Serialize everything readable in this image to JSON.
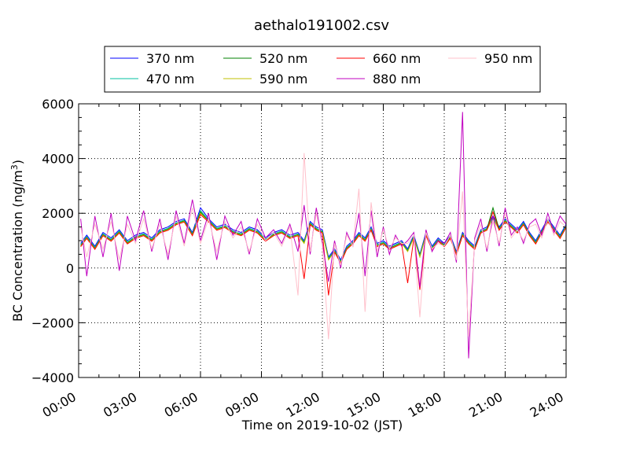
{
  "chart_data": {
    "type": "line",
    "title": "aethalo191002.csv",
    "xlabel": "Time on 2019-10-02 (JST)",
    "ylabel_main": "BC Concentration (ng/m",
    "ylabel_sup": "3",
    "ylabel_tail": ")",
    "xlim": [
      "00:00",
      "24:00"
    ],
    "ylim": [
      -4000,
      6000
    ],
    "x_ticks": [
      "00:00",
      "03:00",
      "06:00",
      "09:00",
      "12:00",
      "15:00",
      "18:00",
      "21:00",
      "24:00"
    ],
    "y_ticks": [
      "−4000",
      "−2000",
      "0",
      "2000",
      "4000",
      "6000"
    ],
    "grid": true,
    "legend_position": "top",
    "x_hours": [
      0.1,
      0.4,
      0.8,
      1.2,
      1.6,
      2.0,
      2.4,
      2.8,
      3.2,
      3.6,
      4.0,
      4.4,
      4.8,
      5.2,
      5.6,
      6.0,
      6.4,
      6.8,
      7.2,
      7.6,
      8.0,
      8.4,
      8.8,
      9.2,
      9.6,
      10.0,
      10.4,
      10.8,
      11.1,
      11.4,
      11.7,
      12.0,
      12.3,
      12.6,
      12.9,
      13.2,
      13.5,
      13.8,
      14.1,
      14.4,
      14.7,
      15.0,
      15.3,
      15.6,
      15.9,
      16.2,
      16.5,
      16.8,
      17.1,
      17.4,
      17.7,
      18.0,
      18.3,
      18.6,
      18.9,
      19.2,
      19.5,
      19.8,
      20.1,
      20.4,
      20.7,
      21.0,
      21.3,
      21.6,
      21.9,
      22.2,
      22.5,
      22.8,
      23.1,
      23.4,
      23.7,
      24.0
    ],
    "series": [
      {
        "name": "370 nm",
        "color": "#0000ff",
        "values": [
          900,
          1200,
          800,
          1300,
          1100,
          1400,
          1000,
          1200,
          1300,
          1100,
          1400,
          1500,
          1700,
          1800,
          1300,
          2200,
          1800,
          1500,
          1600,
          1400,
          1300,
          1500,
          1400,
          1100,
          1300,
          1400,
          1200,
          1300,
          1000,
          1700,
          1500,
          1400,
          400,
          700,
          300,
          800,
          1000,
          1300,
          1100,
          1500,
          900,
          1000,
          800,
          900,
          1000,
          700,
          1200,
          500,
          1300,
          800,
          1100,
          900,
          1200,
          600,
          1300,
          1000,
          800,
          1400,
          1500,
          1900,
          1500,
          1800,
          1600,
          1400,
          1700,
          1300,
          1000,
          1400,
          1800,
          1500,
          1200,
          1600
        ]
      },
      {
        "name": "470 nm",
        "color": "#00c0a0",
        "values": [
          850,
          1150,
          750,
          1250,
          1050,
          1350,
          950,
          1150,
          1250,
          1050,
          1350,
          1450,
          1650,
          1750,
          1250,
          2100,
          1750,
          1450,
          1550,
          1350,
          1250,
          1450,
          1350,
          1050,
          1250,
          1350,
          1150,
          1250,
          950,
          1650,
          1450,
          1350,
          350,
          650,
          250,
          750,
          950,
          1250,
          1050,
          1450,
          850,
          950,
          750,
          850,
          950,
          650,
          1150,
          450,
          1250,
          750,
          1050,
          850,
          1150,
          550,
          1250,
          950,
          750,
          1350,
          1450,
          1850,
          1450,
          1750,
          1550,
          1350,
          1650,
          1250,
          950,
          1350,
          1750,
          1450,
          1150,
          1550
        ]
      },
      {
        "name": "520 nm",
        "color": "#008000",
        "values": [
          820,
          1120,
          720,
          1220,
          1020,
          1320,
          920,
          1120,
          1220,
          1020,
          1320,
          1420,
          1620,
          1720,
          1220,
          2050,
          1720,
          1420,
          1520,
          1320,
          1220,
          1420,
          1320,
          1020,
          1220,
          1320,
          1120,
          1220,
          920,
          1620,
          1420,
          1320,
          320,
          620,
          220,
          720,
          920,
          1220,
          1020,
          1420,
          820,
          920,
          720,
          820,
          920,
          620,
          1120,
          420,
          1220,
          720,
          1020,
          820,
          1120,
          520,
          1220,
          920,
          720,
          1320,
          1420,
          2200,
          1420,
          1720,
          1520,
          1320,
          1620,
          1220,
          920,
          1320,
          1720,
          1420,
          1120,
          1520
        ]
      },
      {
        "name": "590 nm",
        "color": "#c0c000",
        "values": [
          800,
          1100,
          700,
          1200,
          1000,
          1300,
          900,
          1100,
          1200,
          1000,
          1300,
          1400,
          1600,
          1700,
          1200,
          2000,
          1700,
          1400,
          1500,
          1300,
          1200,
          1400,
          1300,
          1000,
          1200,
          1300,
          1100,
          1200,
          900,
          1600,
          1400,
          1300,
          300,
          600,
          200,
          700,
          900,
          1200,
          1000,
          1400,
          800,
          900,
          700,
          800,
          900,
          600,
          1100,
          400,
          1200,
          700,
          1000,
          800,
          1100,
          500,
          1200,
          900,
          700,
          1300,
          1400,
          1800,
          1400,
          1700,
          1500,
          1300,
          1600,
          1200,
          900,
          1300,
          1700,
          1400,
          1100,
          1500
        ]
      },
      {
        "name": "660 nm",
        "color": "#ff0000",
        "values": [
          780,
          1080,
          680,
          1180,
          980,
          1280,
          880,
          1080,
          1180,
          980,
          1280,
          1380,
          1580,
          1680,
          1180,
          1950,
          1680,
          1380,
          1480,
          1280,
          1180,
          1380,
          1280,
          980,
          1180,
          1280,
          1080,
          1180,
          -400,
          1580,
          1380,
          1280,
          -1000,
          580,
          180,
          680,
          880,
          1180,
          980,
          1380,
          780,
          880,
          680,
          780,
          880,
          -550,
          1080,
          -800,
          1180,
          680,
          980,
          780,
          1080,
          480,
          1180,
          880,
          680,
          1280,
          1380,
          2050,
          1380,
          1680,
          1480,
          1280,
          1580,
          1180,
          880,
          1280,
          1680,
          1380,
          1080,
          1480
        ]
      },
      {
        "name": "880 nm",
        "color": "#c000c0",
        "values": [
          1800,
          -300,
          1900,
          400,
          2000,
          -100,
          1900,
          1000,
          2100,
          600,
          1800,
          300,
          2100,
          900,
          2500,
          1000,
          2000,
          300,
          1900,
          1200,
          1700,
          500,
          1800,
          1100,
          1400,
          900,
          1600,
          600,
          2300,
          500,
          2200,
          900,
          -500,
          1000,
          0,
          1300,
          800,
          2000,
          -300,
          2100,
          400,
          1500,
          500,
          1200,
          800,
          1000,
          1300,
          -700,
          1400,
          600,
          1000,
          900,
          1300,
          200,
          5700,
          -3300,
          1100,
          1800,
          600,
          1900,
          800,
          2200,
          1200,
          1500,
          900,
          1600,
          1800,
          1200,
          2000,
          1300,
          1900,
          1600
        ]
      },
      {
        "name": "950 nm",
        "color": "#ffc0cb",
        "values": [
          1500,
          400,
          1600,
          700,
          1700,
          300,
          1600,
          900,
          1800,
          700,
          1600,
          500,
          1900,
          800,
          2200,
          900,
          1800,
          600,
          1700,
          1100,
          1500,
          600,
          1600,
          1000,
          1300,
          800,
          1500,
          -1000,
          4200,
          600,
          2000,
          800,
          -2600,
          900,
          100,
          1200,
          800,
          2900,
          -1600,
          2400,
          600,
          1400,
          700,
          1100,
          900,
          900,
          1200,
          -1800,
          1300,
          700,
          900,
          800,
          1200,
          300,
          2800,
          -2500,
          1000,
          1600,
          700,
          1700,
          900,
          2000,
          1100,
          1400,
          1000,
          1500,
          1600,
          1100,
          1800,
          1200,
          1700,
          1500
        ]
      }
    ]
  }
}
